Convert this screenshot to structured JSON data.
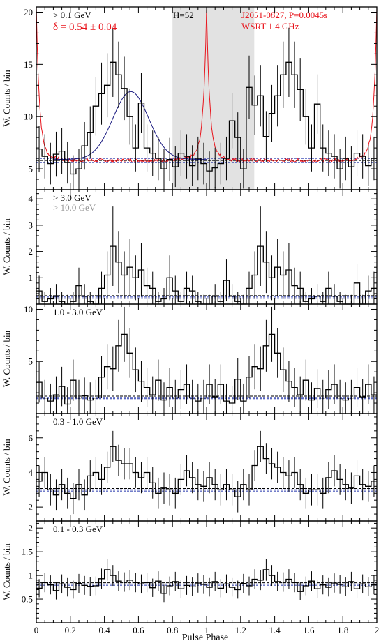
{
  "chart_data": [
    {
      "type": "step",
      "panel": "top",
      "energy_label": "> 0.1 GeV",
      "annotation_delta": "δ = 0.54 ± 0.04",
      "annotation_H": "H=52",
      "radio_label_line1": "J2051-0827, P=0.0045s",
      "radio_label_line2": "WSRT 1.4 GHz",
      "ylabel": "W. Counts / bin",
      "xlim": [
        0,
        2
      ],
      "ylim": [
        3,
        20.5
      ],
      "yticks": [
        5,
        10,
        15,
        20
      ],
      "shaded_region": [
        0.8,
        1.28
      ],
      "background_level": 5.8,
      "background_band": [
        5.6,
        6.0
      ],
      "gaussian_fit": {
        "center": 0.555,
        "sigma": 0.105,
        "amplitude": 6.5,
        "base": 5.9,
        "range": [
          0.1,
          1.0
        ]
      },
      "radio_profile": {
        "baseline": 5.8,
        "peak_phase": 1.0,
        "peak_value": 19.3
      },
      "values": [
        6.9,
        6.2,
        5.5,
        6.4,
        6.7,
        5.6,
        4.5,
        5.0,
        7.2,
        8.5,
        11.0,
        12.2,
        13.0,
        15.2,
        14.0,
        12.7,
        10.0,
        7.0,
        11.3,
        7.0,
        6.5,
        6.0,
        5.0,
        5.9,
        5.2,
        6.5,
        6.2,
        5.3,
        6.0,
        5.5,
        4.8,
        5.1,
        5.5,
        6.0,
        9.6,
        8.0,
        5.0,
        12.8,
        11.1,
        12.0,
        8.1,
        10.3,
        12.0,
        14.0,
        15.2,
        14.0,
        12.6,
        10.0,
        7.0,
        11.2,
        7.0,
        6.5,
        6.2,
        5.0,
        6.0,
        5.2,
        6.5,
        6.2,
        5.3,
        6.0
      ]
    },
    {
      "type": "step",
      "panel": "2",
      "energy_label": "> 3.0 GeV",
      "energy_label2": "> 10.0 GeV",
      "ylabel": "W. Counts / bin",
      "xlim": [
        0,
        2
      ],
      "ylim": [
        0,
        4.35
      ],
      "yticks": [
        1,
        2,
        3,
        4
      ],
      "background_level": 0.27,
      "values": [
        0.5,
        0.1,
        0.2,
        0.3,
        0.1,
        0.0,
        0.1,
        0.7,
        0.3,
        0.1,
        0.0,
        0.6,
        1.1,
        2.2,
        1.6,
        1.1,
        1.4,
        1.0,
        1.3,
        0.7,
        0.6,
        0.1,
        0.2,
        1.0,
        0.5,
        0.1,
        0.6,
        0.5,
        0.1,
        0.0,
        0.0,
        0.3,
        0.1,
        0.9,
        0.3,
        0.1,
        0.0,
        0.6,
        1.1,
        2.2,
        1.6,
        1.0,
        1.4,
        1.1,
        1.3,
        0.7,
        0.6,
        0.1,
        0.2,
        0.3,
        0.1,
        0.6,
        0.3,
        0.1,
        0.0,
        0.0,
        0.8,
        0.0,
        0.5,
        0.6
      ]
    },
    {
      "type": "step",
      "panel": "3",
      "energy_label": "1.0 - 3.0 GeV",
      "ylabel": "W. Counts / bin",
      "xlim": [
        0,
        2
      ],
      "ylim": [
        0,
        10.5
      ],
      "yticks": [
        5,
        10
      ],
      "background_level": 1.55,
      "values": [
        3.0,
        1.5,
        1.2,
        1.8,
        2.6,
        0.9,
        3.2,
        1.5,
        1.7,
        1.3,
        1.5,
        3.5,
        4.5,
        4.3,
        6.5,
        7.6,
        5.8,
        4.2,
        3.1,
        2.5,
        1.8,
        3.2,
        1.3,
        2.5,
        1.5,
        2.3,
        2.8,
        1.5,
        1.2,
        1.5,
        2.8,
        1.6,
        2.8,
        1.2,
        1.0,
        3.3,
        1.2,
        3.5,
        4.5,
        4.3,
        6.5,
        7.6,
        5.8,
        4.2,
        3.1,
        2.5,
        1.8,
        3.2,
        1.3,
        2.4,
        1.5,
        2.3,
        2.8,
        1.5,
        1.3,
        1.5,
        2.5,
        1.6,
        2.8,
        1.8
      ]
    },
    {
      "type": "step",
      "panel": "4",
      "energy_label": "0.3 - 1.0 GeV",
      "ylabel": "W. Counts / bin",
      "xlim": [
        0,
        2
      ],
      "ylim": [
        1.2,
        7.4
      ],
      "yticks": [
        2,
        4,
        6
      ],
      "background_level": 3.0,
      "values": [
        3.5,
        4.0,
        3.0,
        2.7,
        3.3,
        2.8,
        2.5,
        3.3,
        2.7,
        3.8,
        4.0,
        3.6,
        4.3,
        5.5,
        4.7,
        4.5,
        4.5,
        4.0,
        3.7,
        4.0,
        3.4,
        2.8,
        3.1,
        3.0,
        2.8,
        3.6,
        4.1,
        3.7,
        3.3,
        3.2,
        3.7,
        3.3,
        3.0,
        3.3,
        3.0,
        2.6,
        3.3,
        3.0,
        4.4,
        5.5,
        4.8,
        4.5,
        4.3,
        4.0,
        3.8,
        4.0,
        3.3,
        2.8,
        3.0,
        3.0,
        2.8,
        3.7,
        4.1,
        3.6,
        3.3,
        3.1,
        3.8,
        3.3,
        3.2,
        3.5
      ]
    },
    {
      "type": "step",
      "panel": "5",
      "energy_label": "0.1 - 0.3 GeV",
      "ylabel": "W. Counts / bin",
      "xlabel": "Pulse Phase",
      "xlim": [
        0,
        2
      ],
      "xticks": [
        0,
        0.2,
        0.4,
        0.6,
        0.8,
        1,
        1.2,
        1.4,
        1.6,
        1.8,
        2
      ],
      "ylim": [
        0,
        2.15
      ],
      "yticks": [
        0.5,
        1,
        1.5,
        2
      ],
      "background_level": 0.82,
      "values": [
        0.73,
        0.85,
        0.8,
        0.68,
        0.82,
        0.75,
        0.7,
        0.83,
        0.79,
        0.77,
        0.78,
        0.93,
        1.12,
        1.0,
        0.88,
        0.86,
        0.9,
        0.85,
        0.82,
        0.85,
        0.74,
        0.88,
        0.62,
        0.78,
        0.87,
        0.72,
        0.79,
        0.76,
        0.84,
        0.81,
        0.75,
        0.87,
        0.73,
        0.82,
        0.75,
        0.7,
        0.83,
        0.78,
        0.92,
        0.9,
        1.12,
        1.0,
        0.87,
        0.86,
        0.92,
        0.85,
        0.66,
        0.78,
        0.88,
        0.72,
        0.8,
        0.75,
        0.84,
        0.81,
        0.76,
        0.87,
        0.72,
        0.82,
        0.76,
        0.8
      ]
    }
  ]
}
